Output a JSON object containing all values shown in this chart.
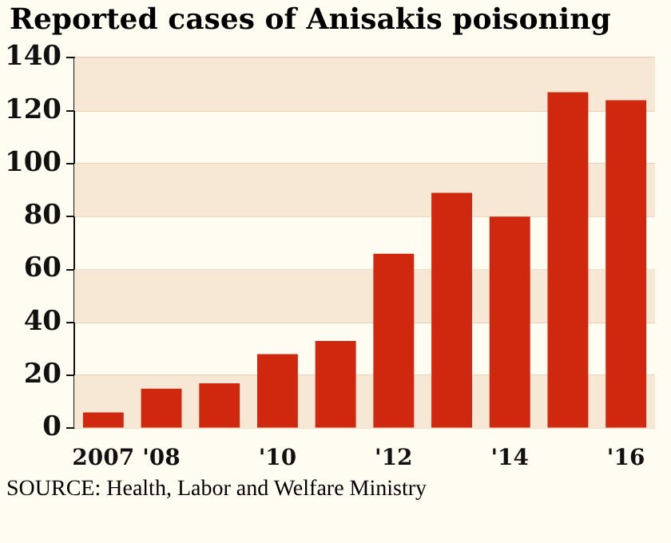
{
  "chart_data": {
    "type": "bar",
    "title": "Reported cases of Anisakis poisoning",
    "categories": [
      "2007",
      "'08",
      null,
      "'10",
      null,
      "'12",
      null,
      "'14",
      null,
      "'16"
    ],
    "values": [
      6,
      15,
      17,
      28,
      33,
      66,
      89,
      80,
      127,
      124
    ],
    "color": "#d0280f",
    "ylim": [
      0,
      140
    ],
    "yticks": [
      0,
      20,
      40,
      60,
      80,
      100,
      120,
      140
    ],
    "grid": "y",
    "annotations": [
      "SOURCE: Health, Labor and Welfare Ministry"
    ]
  }
}
